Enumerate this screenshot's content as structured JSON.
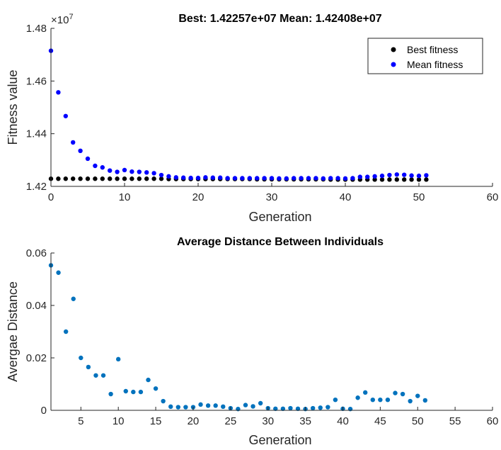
{
  "chart_data": [
    {
      "type": "scatter",
      "title": "Best: 1.42257e+07 Mean: 1.42408e+07",
      "xlabel": "Generation",
      "ylabel": "Fitness value",
      "exponent_label": "×10",
      "exponent_power": "7",
      "xlim": [
        0,
        60
      ],
      "ylim": [
        1.42,
        1.48
      ],
      "xticks": [
        "0",
        "10",
        "20",
        "30",
        "40",
        "50",
        "60"
      ],
      "yticks": [
        "1.42",
        "1.44",
        "1.46",
        "1.48"
      ],
      "grid": false,
      "legend_position": "top-right",
      "series": [
        {
          "name": "Best fitness",
          "color": "#000000",
          "x": [
            0,
            1,
            2,
            3,
            4,
            5,
            6,
            7,
            8,
            9,
            10,
            11,
            12,
            13,
            14,
            15,
            16,
            17,
            18,
            19,
            20,
            21,
            22,
            23,
            24,
            25,
            26,
            27,
            28,
            29,
            30,
            31,
            32,
            33,
            34,
            35,
            36,
            37,
            38,
            39,
            40,
            41,
            42,
            43,
            44,
            45,
            46,
            47,
            48,
            49,
            50,
            51
          ],
          "y": [
            1.4229,
            1.4229,
            1.4229,
            1.4229,
            1.4229,
            1.4229,
            1.4229,
            1.4229,
            1.4229,
            1.4229,
            1.4229,
            1.4229,
            1.4229,
            1.4229,
            1.4229,
            1.4229,
            1.4228,
            1.4228,
            1.4228,
            1.4228,
            1.4228,
            1.4228,
            1.4228,
            1.4228,
            1.4228,
            1.4228,
            1.4228,
            1.4228,
            1.4227,
            1.4227,
            1.4227,
            1.4227,
            1.4227,
            1.4227,
            1.4227,
            1.4227,
            1.4227,
            1.4227,
            1.4226,
            1.4226,
            1.4226,
            1.4226,
            1.4226,
            1.4226,
            1.4226,
            1.4226,
            1.4226,
            1.4226,
            1.4226,
            1.4226,
            1.4226,
            1.4226
          ]
        },
        {
          "name": "Mean fitness",
          "color": "#0000ff",
          "x": [
            0,
            1,
            2,
            3,
            4,
            5,
            6,
            7,
            8,
            9,
            10,
            11,
            12,
            13,
            14,
            15,
            16,
            17,
            18,
            19,
            20,
            21,
            22,
            23,
            24,
            25,
            26,
            27,
            28,
            29,
            30,
            31,
            32,
            33,
            34,
            35,
            36,
            37,
            38,
            39,
            40,
            41,
            42,
            43,
            44,
            45,
            46,
            47,
            48,
            49,
            50,
            51
          ],
          "y": [
            1.4715,
            1.4557,
            1.4467,
            1.4367,
            1.4335,
            1.4305,
            1.4278,
            1.4272,
            1.426,
            1.4255,
            1.4262,
            1.4256,
            1.4255,
            1.4253,
            1.425,
            1.4243,
            1.4238,
            1.4234,
            1.4233,
            1.4232,
            1.4232,
            1.4234,
            1.4233,
            1.4233,
            1.4231,
            1.4231,
            1.4231,
            1.4231,
            1.4231,
            1.4231,
            1.4231,
            1.423,
            1.423,
            1.4231,
            1.4231,
            1.4231,
            1.4231,
            1.423,
            1.4231,
            1.4231,
            1.423,
            1.4231,
            1.4236,
            1.4236,
            1.4238,
            1.424,
            1.4243,
            1.4245,
            1.4244,
            1.4241,
            1.424,
            1.4242
          ]
        }
      ]
    },
    {
      "type": "scatter",
      "title": "Average Distance Between Individuals",
      "xlabel": "Generation",
      "ylabel": "Avergae Distance",
      "xlim": [
        1,
        60
      ],
      "ylim": [
        0,
        0.06
      ],
      "xticks": [
        "5",
        "10",
        "15",
        "20",
        "25",
        "30",
        "35",
        "40",
        "45",
        "50",
        "55",
        "60"
      ],
      "yticks": [
        "0",
        "0.02",
        "0.04",
        "0.06"
      ],
      "grid": false,
      "series": [
        {
          "color": "#0072bd",
          "x": [
            1,
            2,
            3,
            4,
            5,
            6,
            7,
            8,
            9,
            10,
            11,
            12,
            13,
            14,
            15,
            16,
            17,
            18,
            19,
            20,
            21,
            22,
            23,
            24,
            25,
            26,
            27,
            28,
            29,
            30,
            31,
            32,
            33,
            34,
            35,
            36,
            37,
            38,
            39,
            40,
            41,
            42,
            43,
            44,
            45,
            46,
            47,
            48,
            49,
            50,
            51
          ],
          "y": [
            0.0553,
            0.0525,
            0.03,
            0.0425,
            0.02,
            0.0165,
            0.0133,
            0.0133,
            0.0062,
            0.0195,
            0.0073,
            0.007,
            0.007,
            0.0116,
            0.0083,
            0.0035,
            0.0014,
            0.0012,
            0.0012,
            0.0012,
            0.0022,
            0.0018,
            0.0018,
            0.0014,
            0.0008,
            0.0005,
            0.002,
            0.0015,
            0.0027,
            0.0008,
            0.0006,
            0.0006,
            0.0008,
            0.0006,
            0.0005,
            0.0008,
            0.001,
            0.0012,
            0.004,
            0.0006,
            0.0005,
            0.0048,
            0.0068,
            0.004,
            0.004,
            0.004,
            0.0066,
            0.0062,
            0.0035,
            0.0055,
            0.0038
          ]
        }
      ]
    }
  ]
}
